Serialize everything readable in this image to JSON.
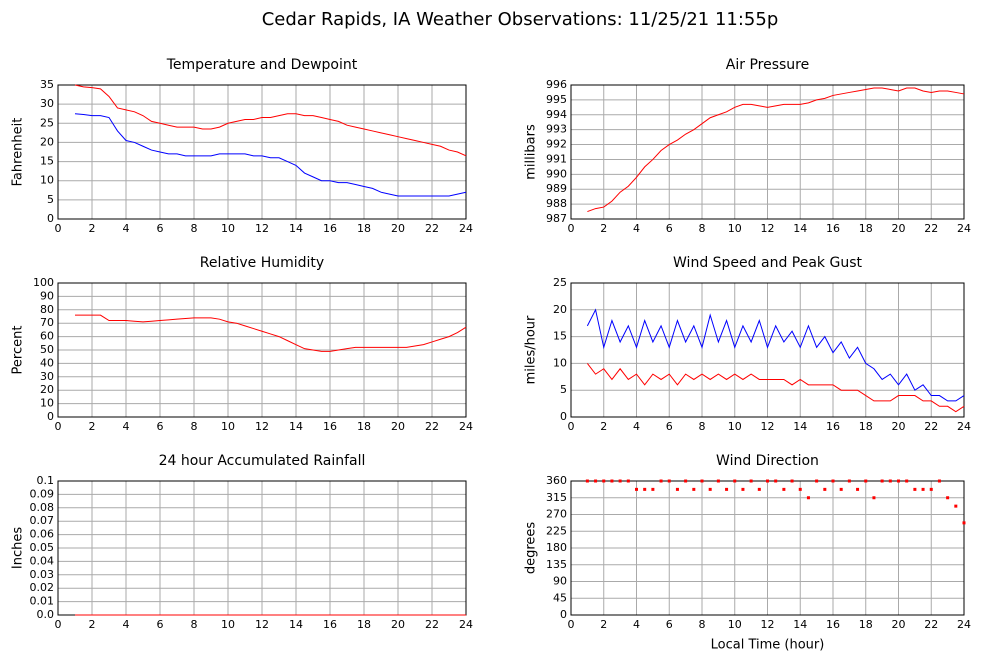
{
  "title": "Cedar Rapids, IA Weather Observations: 11/25/21 11:55p",
  "chart_data": [
    {
      "type": "line",
      "title": "Temperature and Dewpoint",
      "y_label": "Fahrenheit",
      "grid": true,
      "x": [
        1,
        1.5,
        2,
        2.5,
        3,
        3.5,
        4,
        4.5,
        5,
        5.5,
        6,
        6.5,
        7,
        7.5,
        8,
        8.5,
        9,
        9.5,
        10,
        10.5,
        11,
        11.5,
        12,
        12.5,
        13,
        13.5,
        14,
        14.5,
        15,
        15.5,
        16,
        16.5,
        17,
        17.5,
        18,
        18.5,
        19,
        19.5,
        20,
        20.5,
        21,
        21.5,
        22,
        22.5,
        23,
        23.5,
        24
      ],
      "series": [
        {
          "color": "#ff0000",
          "values": [
            35,
            34.5,
            34.3,
            34,
            32,
            29,
            28.5,
            28,
            27,
            25.5,
            25,
            24.5,
            24,
            24,
            24,
            23.5,
            23.5,
            24,
            25,
            25.5,
            26,
            26,
            26.5,
            26.5,
            27,
            27.5,
            27.5,
            27,
            27,
            26.5,
            26,
            25.5,
            24.5,
            24,
            23.5,
            23,
            22.5,
            22,
            21.5,
            21,
            20.5,
            20,
            19.5,
            19,
            18,
            17.5,
            16.5
          ]
        },
        {
          "color": "#0000ff",
          "values": [
            27.5,
            27.3,
            27,
            27,
            26.5,
            23,
            20.5,
            20,
            19,
            18,
            17.5,
            17,
            17,
            16.5,
            16.5,
            16.5,
            16.5,
            17,
            17,
            17,
            17,
            16.5,
            16.5,
            16,
            16,
            15,
            14,
            12,
            11,
            10,
            10,
            9.5,
            9.5,
            9,
            8.5,
            8,
            7,
            6.5,
            6,
            6,
            6,
            6,
            6,
            6,
            6,
            6.5,
            7
          ]
        }
      ],
      "xlim": [
        0,
        24
      ],
      "xticks": [
        0,
        2,
        4,
        6,
        8,
        10,
        12,
        14,
        16,
        18,
        20,
        22,
        24
      ],
      "ylim": [
        0,
        35
      ],
      "yticks": [
        0,
        5,
        10,
        15,
        20,
        25,
        30,
        35
      ]
    },
    {
      "type": "line",
      "title": "Air Pressure",
      "y_label": "millibars",
      "grid": true,
      "x": [
        1,
        1.5,
        2,
        2.5,
        3,
        3.5,
        4,
        4.5,
        5,
        5.5,
        6,
        6.5,
        7,
        7.5,
        8,
        8.5,
        9,
        9.5,
        10,
        10.5,
        11,
        11.5,
        12,
        12.5,
        13,
        13.5,
        14,
        14.5,
        15,
        15.5,
        16,
        16.5,
        17,
        17.5,
        18,
        18.5,
        19,
        19.5,
        20,
        20.5,
        21,
        21.5,
        22,
        22.5,
        23,
        23.5,
        24
      ],
      "series": [
        {
          "color": "#ff0000",
          "values": [
            987.5,
            987.7,
            987.8,
            988.2,
            988.8,
            989.2,
            989.8,
            990.5,
            991,
            991.6,
            992,
            992.3,
            992.7,
            993,
            993.4,
            993.8,
            994,
            994.2,
            994.5,
            994.7,
            994.7,
            994.6,
            994.5,
            994.6,
            994.7,
            994.7,
            994.7,
            994.8,
            995,
            995.1,
            995.3,
            995.4,
            995.5,
            995.6,
            995.7,
            995.8,
            995.8,
            995.7,
            995.6,
            995.8,
            995.8,
            995.6,
            995.5,
            995.6,
            995.6,
            995.5,
            995.4
          ]
        }
      ],
      "xlim": [
        0,
        24
      ],
      "xticks": [
        0,
        2,
        4,
        6,
        8,
        10,
        12,
        14,
        16,
        18,
        20,
        22,
        24
      ],
      "ylim": [
        987,
        996
      ],
      "yticks": [
        987,
        988,
        989,
        990,
        991,
        992,
        993,
        994,
        995,
        996
      ]
    },
    {
      "type": "line",
      "title": "Relative Humidity",
      "y_label": "Percent",
      "grid": true,
      "x": [
        1,
        1.5,
        2,
        2.5,
        3,
        3.5,
        4,
        4.5,
        5,
        5.5,
        6,
        6.5,
        7,
        7.5,
        8,
        8.5,
        9,
        9.5,
        10,
        10.5,
        11,
        11.5,
        12,
        12.5,
        13,
        13.5,
        14,
        14.5,
        15,
        15.5,
        16,
        16.5,
        17,
        17.5,
        18,
        18.5,
        19,
        19.5,
        20,
        20.5,
        21,
        21.5,
        22,
        22.5,
        23,
        23.5,
        24
      ],
      "series": [
        {
          "color": "#ff0000",
          "values": [
            76,
            76,
            76,
            76,
            72,
            72,
            72,
            71.5,
            71,
            71.5,
            72,
            72.5,
            73,
            73.5,
            74,
            74,
            74,
            73,
            71,
            70,
            68,
            66,
            64,
            62,
            60,
            57,
            54,
            51,
            50,
            49,
            49,
            50,
            51,
            52,
            52,
            52,
            52,
            52,
            52,
            52,
            53,
            54,
            56,
            58,
            60,
            63,
            67
          ]
        }
      ],
      "xlim": [
        0,
        24
      ],
      "xticks": [
        0,
        2,
        4,
        6,
        8,
        10,
        12,
        14,
        16,
        18,
        20,
        22,
        24
      ],
      "ylim": [
        0,
        100
      ],
      "yticks": [
        0,
        10,
        20,
        30,
        40,
        50,
        60,
        70,
        80,
        90,
        100
      ]
    },
    {
      "type": "line",
      "title": "Wind Speed and Peak Gust",
      "y_label": "miles/hour",
      "grid": true,
      "x": [
        1,
        1.5,
        2,
        2.5,
        3,
        3.5,
        4,
        4.5,
        5,
        5.5,
        6,
        6.5,
        7,
        7.5,
        8,
        8.5,
        9,
        9.5,
        10,
        10.5,
        11,
        11.5,
        12,
        12.5,
        13,
        13.5,
        14,
        14.5,
        15,
        15.5,
        16,
        16.5,
        17,
        17.5,
        18,
        18.5,
        19,
        19.5,
        20,
        20.5,
        21,
        21.5,
        22,
        22.5,
        23,
        23.5,
        24
      ],
      "series": [
        {
          "color": "#0000ff",
          "values": [
            17,
            20,
            13,
            18,
            14,
            17,
            13,
            18,
            14,
            17,
            13,
            18,
            14,
            17,
            13,
            19,
            14,
            18,
            13,
            17,
            14,
            18,
            13,
            17,
            14,
            16,
            13,
            17,
            13,
            15,
            12,
            14,
            11,
            13,
            10,
            9,
            7,
            8,
            6,
            8,
            5,
            6,
            4,
            4,
            3,
            3,
            4
          ]
        },
        {
          "color": "#ff0000",
          "values": [
            10,
            8,
            9,
            7,
            9,
            7,
            8,
            6,
            8,
            7,
            8,
            6,
            8,
            7,
            8,
            7,
            8,
            7,
            8,
            7,
            8,
            7,
            7,
            7,
            7,
            6,
            7,
            6,
            6,
            6,
            6,
            5,
            5,
            5,
            4,
            3,
            3,
            3,
            4,
            4,
            4,
            3,
            3,
            2,
            2,
            1,
            2
          ]
        }
      ],
      "xlim": [
        0,
        24
      ],
      "xticks": [
        0,
        2,
        4,
        6,
        8,
        10,
        12,
        14,
        16,
        18,
        20,
        22,
        24
      ],
      "ylim": [
        0,
        25
      ],
      "yticks": [
        0,
        5,
        10,
        15,
        20,
        25
      ]
    },
    {
      "type": "line",
      "title": "24 hour Accumulated Rainfall",
      "y_label": "Inches",
      "grid": true,
      "x": [
        1,
        1.5,
        2,
        2.5,
        3,
        3.5,
        4,
        4.5,
        5,
        5.5,
        6,
        6.5,
        7,
        7.5,
        8,
        8.5,
        9,
        9.5,
        10,
        10.5,
        11,
        11.5,
        12,
        12.5,
        13,
        13.5,
        14,
        14.5,
        15,
        15.5,
        16,
        16.5,
        17,
        17.5,
        18,
        18.5,
        19,
        19.5,
        20,
        20.5,
        21,
        21.5,
        22,
        22.5,
        23,
        23.5,
        24
      ],
      "series": [
        {
          "color": "#ff0000",
          "values": [
            0,
            0,
            0,
            0,
            0,
            0,
            0,
            0,
            0,
            0,
            0,
            0,
            0,
            0,
            0,
            0,
            0,
            0,
            0,
            0,
            0,
            0,
            0,
            0,
            0,
            0,
            0,
            0,
            0,
            0,
            0,
            0,
            0,
            0,
            0,
            0,
            0,
            0,
            0,
            0,
            0,
            0,
            0,
            0,
            0,
            0,
            0
          ]
        }
      ],
      "xlim": [
        0,
        24
      ],
      "xticks": [
        0,
        2,
        4,
        6,
        8,
        10,
        12,
        14,
        16,
        18,
        20,
        22,
        24
      ],
      "ylim": [
        0,
        0.1
      ],
      "yticks": [
        {
          "value": 0,
          "label": "0.0"
        },
        0.01,
        0.02,
        0.03,
        0.04,
        0.05,
        0.06,
        0.07,
        0.08,
        0.09,
        0.1
      ]
    },
    {
      "type": "scatter",
      "title": "Wind Direction",
      "y_label": "degrees",
      "x_label": "Local Time (hour)",
      "grid": true,
      "x": [
        1,
        1.5,
        2,
        2.5,
        3,
        3.5,
        4,
        4.5,
        5,
        5.5,
        6,
        6.5,
        7,
        7.5,
        8,
        8.5,
        9,
        9.5,
        10,
        10.5,
        11,
        11.5,
        12,
        12.5,
        13,
        13.5,
        14,
        14.5,
        15,
        15.5,
        16,
        16.5,
        17,
        17.5,
        18,
        18.5,
        19,
        19.5,
        20,
        20.5,
        21,
        21.5,
        22,
        22.5,
        23,
        23.5,
        24
      ],
      "series": [
        {
          "color": "#ff0000",
          "values": [
            360,
            360,
            360,
            360,
            360,
            360,
            337.5,
            337.5,
            337.5,
            360,
            360,
            337.5,
            360,
            337.5,
            360,
            337.5,
            360,
            337.5,
            360,
            337.5,
            360,
            337.5,
            360,
            360,
            337.5,
            360,
            337.5,
            315,
            360,
            337.5,
            360,
            337.5,
            360,
            337.5,
            360,
            315,
            360,
            360,
            360,
            360,
            337.5,
            337.5,
            337.5,
            360,
            315,
            292.5,
            247.5
          ]
        }
      ],
      "xlim": [
        0,
        24
      ],
      "xticks": [
        0,
        2,
        4,
        6,
        8,
        10,
        12,
        14,
        16,
        18,
        20,
        22,
        24
      ],
      "ylim": [
        0,
        360
      ],
      "yticks": [
        0,
        45,
        90,
        135,
        180,
        225,
        270,
        315,
        360
      ]
    }
  ]
}
